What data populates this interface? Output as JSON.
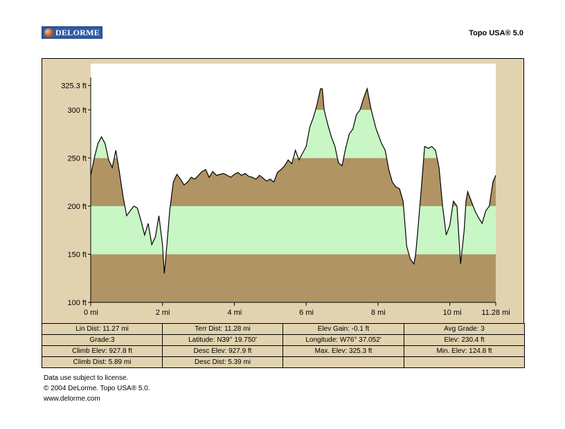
{
  "header": {
    "brand": "DELORME",
    "product": "Topo USA® 5.0"
  },
  "chart_data": {
    "type": "area",
    "xlabel": "",
    "ylabel": "",
    "xlim": [
      0,
      11.28
    ],
    "ylim": [
      100,
      325.3
    ],
    "x_ticks": [
      {
        "value": 0,
        "label": "0 mi"
      },
      {
        "value": 2,
        "label": "2 mi"
      },
      {
        "value": 4,
        "label": "4 mi"
      },
      {
        "value": 6,
        "label": "6 mi"
      },
      {
        "value": 8,
        "label": "8 mi"
      },
      {
        "value": 10,
        "label": "10 mi"
      },
      {
        "value": 11.28,
        "label": "11.28 mi"
      }
    ],
    "y_ticks": [
      {
        "value": 100,
        "label": "100 ft"
      },
      {
        "value": 150,
        "label": "150 ft"
      },
      {
        "value": 200,
        "label": "200 ft"
      },
      {
        "value": 250,
        "label": "250 ft"
      },
      {
        "value": 300,
        "label": "300 ft"
      },
      {
        "value": 325.3,
        "label": "325.3 ft"
      }
    ],
    "bands": [
      {
        "from": 100,
        "to": 150,
        "color": "#b09463"
      },
      {
        "from": 150,
        "to": 200,
        "color": "#c8f7c5"
      },
      {
        "from": 200,
        "to": 250,
        "color": "#b09463"
      },
      {
        "from": 250,
        "to": 300,
        "color": "#c8f7c5"
      },
      {
        "from": 300,
        "to": 350,
        "color": "#b09463"
      }
    ],
    "plot_background": "#ffffff",
    "series": [
      {
        "x": [
          0,
          0.1,
          0.2,
          0.3,
          0.4,
          0.5,
          0.6,
          0.7,
          0.8,
          0.9,
          1.0,
          1.1,
          1.2,
          1.3,
          1.4,
          1.5,
          1.6,
          1.7,
          1.8,
          1.9,
          2.0,
          2.05,
          2.1,
          2.2,
          2.3,
          2.4,
          2.5,
          2.6,
          2.7,
          2.8,
          2.9,
          3.0,
          3.1,
          3.2,
          3.3,
          3.4,
          3.5,
          3.6,
          3.7,
          3.8,
          3.9,
          4.0,
          4.1,
          4.2,
          4.3,
          4.4,
          4.5,
          4.6,
          4.7,
          4.8,
          4.9,
          5.0,
          5.1,
          5.2,
          5.3,
          5.4,
          5.5,
          5.6,
          5.7,
          5.8,
          5.9,
          6.0,
          6.1,
          6.2,
          6.3,
          6.4,
          6.45,
          6.5,
          6.6,
          6.7,
          6.8,
          6.9,
          7.0,
          7.1,
          7.2,
          7.3,
          7.4,
          7.5,
          7.6,
          7.7,
          7.8,
          7.9,
          7.95,
          8.0,
          8.1,
          8.2,
          8.3,
          8.4,
          8.5,
          8.6,
          8.7,
          8.8,
          8.9,
          9.0,
          9.05,
          9.1,
          9.2,
          9.3,
          9.4,
          9.5,
          9.6,
          9.7,
          9.8,
          9.9,
          10.0,
          10.1,
          10.2,
          10.3,
          10.4,
          10.45,
          10.5,
          10.6,
          10.7,
          10.8,
          10.9,
          11.0,
          11.1,
          11.2,
          11.28
        ],
        "y": [
          232,
          250,
          265,
          272,
          265,
          248,
          240,
          258,
          235,
          210,
          190,
          195,
          200,
          198,
          185,
          170,
          182,
          160,
          168,
          190,
          160,
          130,
          150,
          195,
          225,
          233,
          228,
          222,
          225,
          230,
          228,
          232,
          236,
          238,
          230,
          236,
          232,
          233,
          234,
          232,
          230,
          233,
          235,
          232,
          234,
          231,
          230,
          228,
          232,
          229,
          226,
          228,
          225,
          235,
          238,
          242,
          248,
          244,
          258,
          248,
          255,
          262,
          282,
          292,
          305,
          322,
          322,
          300,
          285,
          272,
          262,
          245,
          242,
          260,
          275,
          280,
          295,
          300,
          312,
          322,
          302,
          287,
          280,
          275,
          265,
          258,
          238,
          225,
          220,
          218,
          205,
          158,
          145,
          140,
          150,
          170,
          215,
          262,
          260,
          262,
          258,
          240,
          200,
          170,
          180,
          205,
          200,
          140,
          175,
          205,
          215,
          205,
          195,
          188,
          182,
          195,
          200,
          225,
          232
        ]
      }
    ]
  },
  "stats": {
    "rows": [
      [
        "Lin Dist: 11.27 mi",
        "Terr Dist: 11.28 mi",
        "Elev Gain: -0.1 ft",
        "Avg Grade: 3"
      ],
      [
        "Grade:3",
        "Latitude: N39° 19.750'",
        "Longitude: W76° 37.052'",
        "Elev: 230.4 ft"
      ],
      [
        "Climb Elev: 927.8 ft",
        "Desc Elev: 927.9 ft",
        "Max. Elev: 325.3 ft",
        "Min. Elev: 124.8 ft"
      ],
      [
        "Climb Dist: 5.89 mi",
        "Desc Dist: 5.39 mi",
        "",
        ""
      ]
    ]
  },
  "footer": {
    "license": "Data use subject to license.",
    "copyright": "© 2004 DeLorme. Topo USA® 5.0.",
    "website": "www.delorme.com"
  }
}
